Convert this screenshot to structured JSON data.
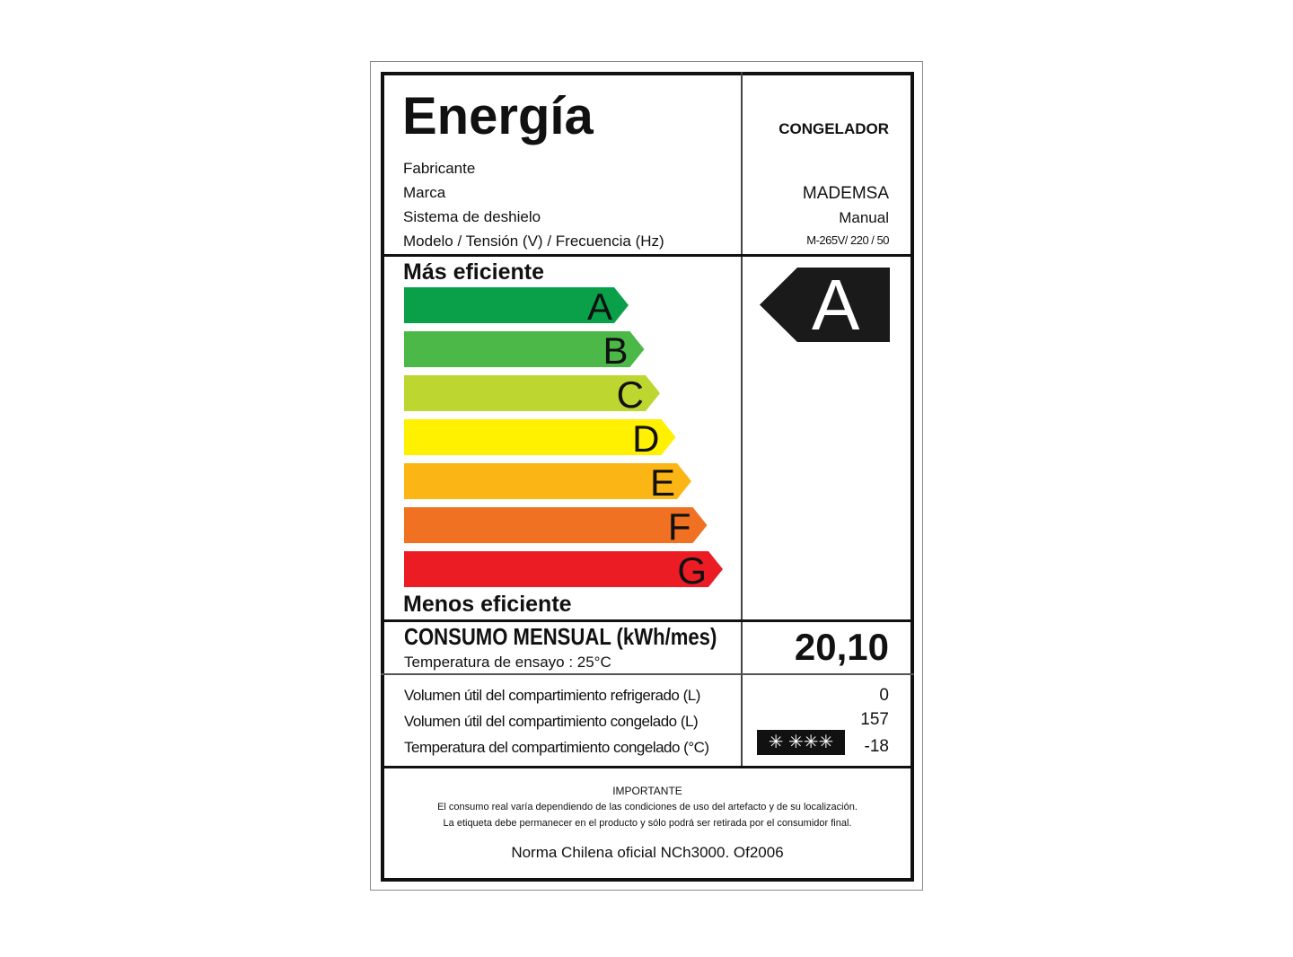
{
  "header": {
    "title": "Energía",
    "appliance_type": "CONGELADOR"
  },
  "info": [
    {
      "label": "Fabricante",
      "value": ""
    },
    {
      "label": "Marca",
      "value": "MADEMSA"
    },
    {
      "label": "Sistema de deshielo",
      "value": "Manual"
    },
    {
      "label": "Modelo / Tensión (V) / Frecuencia (Hz)",
      "value": "M-265V/ 220 / 50"
    }
  ],
  "scale": {
    "top_label": "Más eficiente",
    "bottom_label": "Menos eficiente",
    "classes": [
      {
        "letter": "A",
        "color": "#0aa04a"
      },
      {
        "letter": "B",
        "color": "#4cb848"
      },
      {
        "letter": "C",
        "color": "#bdd630"
      },
      {
        "letter": "D",
        "color": "#fff100"
      },
      {
        "letter": "E",
        "color": "#fbb616"
      },
      {
        "letter": "F",
        "color": "#f07122"
      },
      {
        "letter": "G",
        "color": "#ec1c24"
      }
    ],
    "rating": "A"
  },
  "consumption": {
    "label": "CONSUMO MENSUAL (kWh/mes)",
    "sublabel": "Temperatura de ensayo : 25°C",
    "value": "20,10"
  },
  "specs": [
    {
      "label": "Volumen útil del compartimiento refrigerado (L)",
      "value": "0"
    },
    {
      "label": "Volumen útil del compartimiento congelado (L)",
      "value": "157"
    },
    {
      "label": "Temperatura del compartimiento congelado (°C)",
      "value": "-18"
    }
  ],
  "star_rating": "✳ ✳✳✳",
  "footer": {
    "heading": "IMPORTANTE",
    "line1": "El consumo real varía dependiendo de las condiciones de uso del artefacto y de su localización.",
    "line2": "La etiqueta debe permanecer en el producto y sólo podrá ser retirada por el consumidor final.",
    "norm": "Norma Chilena oficial NCh3000. Of2006"
  }
}
